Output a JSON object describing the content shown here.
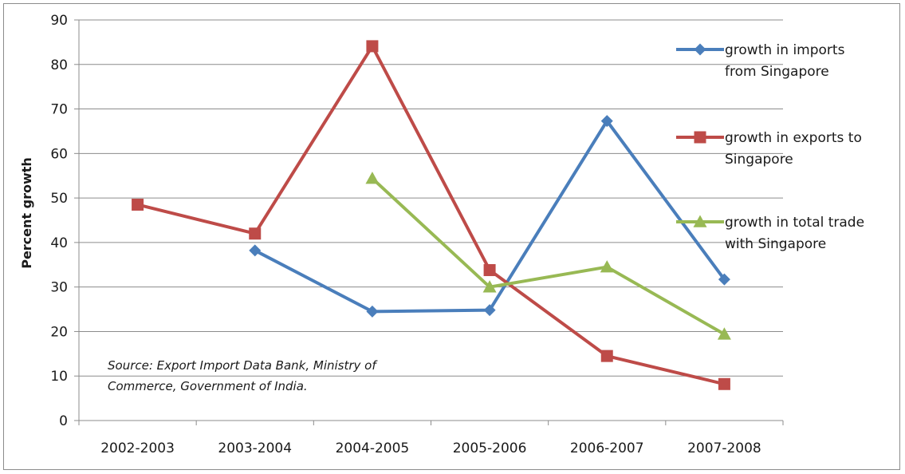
{
  "chart_data": {
    "type": "line",
    "categories": [
      "2002-2003",
      "2003-2004",
      "2004-2005",
      "2005-2006",
      "2006-2007",
      "2007-2008"
    ],
    "ylabel": "Percent growth",
    "ylim": [
      0,
      90
    ],
    "yticks": [
      0,
      10,
      20,
      30,
      40,
      50,
      60,
      70,
      80,
      90
    ],
    "grid": true,
    "legend_position": "right",
    "series": [
      {
        "name": "growth in imports from Singapore",
        "legend_lines": [
          "growth in imports",
          "from Singapore"
        ],
        "color": "#4a7ebb",
        "marker": "diamond",
        "values": [
          null,
          38.2,
          24.5,
          24.8,
          67.3,
          31.7
        ]
      },
      {
        "name": "growth in exports to Singapore",
        "legend_lines": [
          "growth in exports to",
          "Singapore"
        ],
        "color": "#be4b48",
        "marker": "square",
        "values": [
          48.5,
          42.0,
          84.1,
          33.8,
          14.5,
          8.2
        ]
      },
      {
        "name": "growth in total trade with Singapore",
        "legend_lines": [
          "growth in total trade",
          "with Singapore"
        ],
        "color": "#98b954",
        "marker": "triangle",
        "values": [
          null,
          null,
          54.4,
          30.0,
          34.5,
          19.4
        ]
      }
    ],
    "annotation": {
      "lines": [
        "Source: Export Import Data Bank, Ministry of",
        "Commerce, Government of India."
      ]
    }
  }
}
